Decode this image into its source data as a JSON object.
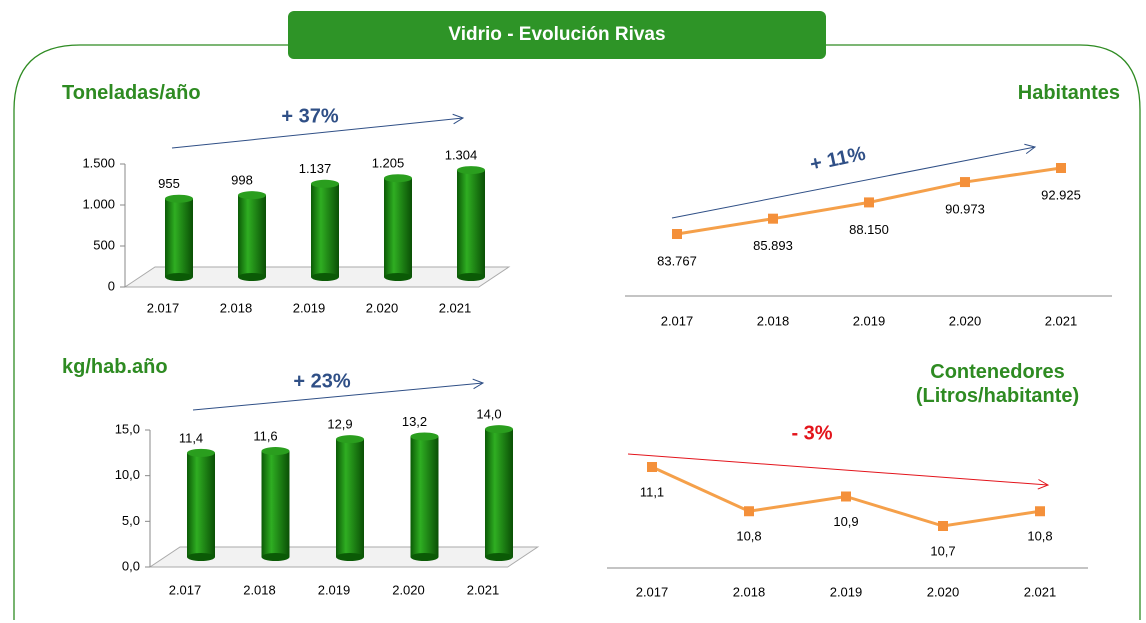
{
  "title": "Vidrio - Evolución Rivas",
  "chart_data": [
    {
      "type": "bar",
      "title": "Toneladas/año",
      "annotation": "+ 37%",
      "annotation_color": "#2f4f86",
      "categories": [
        "2.017",
        "2.018",
        "2.019",
        "2.020",
        "2.021"
      ],
      "values": [
        955,
        998,
        1137,
        1205,
        1304
      ],
      "value_labels": [
        "955",
        "998",
        "1.137",
        "1.205",
        "1.304"
      ],
      "color": "#1a8a12",
      "ylim": [
        0,
        1500
      ],
      "yticks": [
        0,
        500,
        {
          "value": 1000,
          "label": "1.000"
        },
        {
          "value": 1500,
          "label": "1.500"
        }
      ]
    },
    {
      "type": "line",
      "title": "Habitantes",
      "annotation": "+ 11%",
      "annotation_color": "#2f4f86",
      "categories": [
        "2.017",
        "2.018",
        "2.019",
        "2.020",
        "2.021"
      ],
      "values": [
        83767,
        85893,
        88150,
        90973,
        92925
      ],
      "value_labels": [
        "83.767",
        "85.893",
        "88.150",
        "90.973",
        "92.925"
      ],
      "color": "#f5a04a"
    },
    {
      "type": "bar",
      "title": "kg/hab.año",
      "annotation": "+ 23%",
      "annotation_color": "#2f4f86",
      "categories": [
        "2.017",
        "2.018",
        "2.019",
        "2.020",
        "2.021"
      ],
      "values": [
        11.4,
        11.6,
        12.9,
        13.2,
        14.0
      ],
      "value_labels": [
        "11,4",
        "11,6",
        "12,9",
        "13,2",
        "14,0"
      ],
      "color": "#1a8a12",
      "ylim": [
        0,
        15
      ],
      "yticks": [
        {
          "value": 0,
          "label": "0,0"
        },
        {
          "value": 5,
          "label": "5,0"
        },
        {
          "value": 10,
          "label": "10,0"
        },
        {
          "value": 15,
          "label": "15,0"
        }
      ]
    },
    {
      "type": "line",
      "title": "Contenedores (Litros/habitante)",
      "annotation": "- 3%",
      "annotation_color": "#e3141b",
      "categories": [
        "2.017",
        "2.018",
        "2.019",
        "2.020",
        "2.021"
      ],
      "values": [
        11.1,
        10.8,
        10.9,
        10.7,
        10.8
      ],
      "value_labels": [
        "11,1",
        "10,8",
        "10,9",
        "10,7",
        "10,8"
      ],
      "color": "#f5a04a"
    }
  ]
}
